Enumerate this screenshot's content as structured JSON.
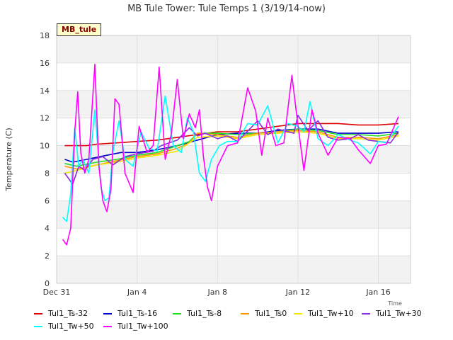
{
  "chart_data": {
    "type": "line",
    "title": "MB Tule Tower: Tule Temps 1 (3/19/14-now)",
    "xlabel": "Time",
    "ylabel": "Temperature (C)",
    "badge": "MB_tule",
    "ylim": [
      0,
      18
    ],
    "yticks": [
      0,
      2,
      4,
      6,
      8,
      10,
      12,
      14,
      16,
      18
    ],
    "xlim": [
      0,
      17.6
    ],
    "xticks": [
      {
        "label": "Dec 31",
        "x": 0
      },
      {
        "label": "Jan 4",
        "x": 4
      },
      {
        "label": "Jan 8",
        "x": 8
      },
      {
        "label": "Jan 12",
        "x": 12
      },
      {
        "label": "Jan 16",
        "x": 16
      }
    ],
    "grid": true,
    "legend_position": "bottom",
    "series": [
      {
        "name": "Tul1_Ts-32",
        "color": "#dd0000",
        "x": [
          0.4,
          1.5,
          2,
          3,
          4,
          5,
          6,
          7,
          8,
          9,
          10,
          11,
          12,
          13,
          14,
          15,
          16,
          17
        ],
        "y": [
          10.0,
          10.0,
          10.1,
          10.2,
          10.3,
          10.4,
          10.6,
          10.8,
          11.0,
          11.0,
          11.2,
          11.4,
          11.6,
          11.6,
          11.6,
          11.5,
          11.5,
          11.6
        ]
      },
      {
        "name": "Tul1_Ts-16",
        "color": "#0000cc",
        "x": [
          0.4,
          0.8,
          1.5,
          2.5,
          3.2,
          4,
          5,
          6,
          7,
          8,
          9,
          10,
          11,
          12,
          13,
          14,
          15,
          16,
          17
        ],
        "y": [
          9.0,
          8.8,
          9.0,
          9.3,
          9.5,
          9.5,
          9.7,
          10.0,
          10.4,
          10.8,
          10.9,
          10.9,
          11.1,
          11.2,
          11.2,
          10.9,
          10.9,
          10.9,
          11.0
        ]
      },
      {
        "name": "Tul1_Ts-8",
        "color": "#22dd22",
        "x": [
          0.4,
          1,
          2,
          3,
          4,
          5,
          6,
          6.6,
          7,
          8,
          9,
          10,
          11,
          12,
          13,
          14,
          15,
          16,
          17
        ],
        "y": [
          8.7,
          8.5,
          8.8,
          9.0,
          9.3,
          9.5,
          10.0,
          10.3,
          10.9,
          10.9,
          10.8,
          10.9,
          11.0,
          11.2,
          11.1,
          10.8,
          10.8,
          10.7,
          10.9
        ]
      },
      {
        "name": "Tul1_Ts0",
        "color": "#ff9900",
        "x": [
          0.4,
          1,
          2,
          3,
          4,
          5,
          6,
          6.6,
          7,
          8,
          9,
          10,
          11,
          12,
          13,
          14,
          15,
          16,
          17
        ],
        "y": [
          8.5,
          8.3,
          8.6,
          8.9,
          9.2,
          9.4,
          9.8,
          10.2,
          10.9,
          10.8,
          10.6,
          10.9,
          11.0,
          11.1,
          11.0,
          10.6,
          10.6,
          10.5,
          10.8
        ]
      },
      {
        "name": "Tul1_Tw+10",
        "color": "#f2e600",
        "x": [
          0.4,
          1,
          2,
          3,
          4,
          5,
          6,
          7,
          8,
          9,
          10,
          11,
          12,
          13,
          14,
          15,
          16,
          17
        ],
        "y": [
          8.0,
          8.2,
          8.6,
          8.8,
          9.1,
          9.3,
          9.6,
          10.6,
          10.7,
          10.5,
          10.8,
          10.9,
          11.0,
          10.9,
          10.5,
          10.5,
          10.4,
          10.7
        ]
      },
      {
        "name": "Tul1_Tw+30",
        "color": "#8a2be2",
        "x": [
          0.4,
          0.8,
          1.1,
          1.4,
          1.8,
          2.3,
          2.8,
          3.4,
          4,
          4.8,
          5.2,
          6,
          6.6,
          7,
          7.4,
          8,
          8.5,
          9,
          10,
          10.5,
          11,
          11.8,
          12,
          12.5,
          13,
          13.5,
          14,
          14.6,
          15,
          15.5,
          16,
          16.6,
          17
        ],
        "y": [
          8.0,
          7.2,
          8.5,
          8.2,
          9.0,
          9.2,
          8.6,
          9.2,
          9.4,
          9.6,
          10.0,
          10.4,
          11.3,
          10.7,
          10.9,
          10.5,
          10.7,
          10.3,
          11.8,
          10.8,
          11.2,
          10.9,
          12.2,
          11.1,
          11.8,
          10.6,
          10.4,
          10.5,
          10.8,
          10.4,
          10.3,
          10.2,
          11.0
        ]
      },
      {
        "name": "Tul1_Tw+50",
        "color": "#00ffff",
        "x": [
          0.3,
          0.5,
          0.7,
          0.9,
          1.1,
          1.3,
          1.6,
          1.9,
          2.2,
          2.4,
          2.6,
          2.8,
          3.1,
          3.4,
          3.8,
          4.2,
          4.6,
          5,
          5.4,
          5.8,
          6.2,
          6.5,
          6.8,
          7.1,
          7.4,
          7.7,
          8.1,
          8.5,
          9,
          9.5,
          10,
          10.5,
          11,
          11.5,
          12,
          12.3,
          12.6,
          13,
          13.5,
          14,
          14.6,
          15,
          15.6,
          16,
          16.4,
          17
        ],
        "y": [
          4.8,
          4.5,
          6.5,
          11.3,
          8.5,
          9.0,
          8.0,
          12.6,
          7.0,
          6.0,
          6.2,
          9.5,
          11.8,
          9.0,
          8.5,
          11.0,
          9.8,
          9.6,
          13.6,
          10.0,
          9.5,
          12.0,
          11.0,
          8.0,
          7.4,
          9.0,
          10.0,
          10.3,
          10.3,
          11.6,
          11.5,
          12.9,
          10.2,
          11.6,
          11.4,
          11.0,
          13.2,
          10.5,
          10.0,
          10.8,
          10.4,
          10.2,
          9.4,
          10.3,
          10.2,
          11.4
        ]
      },
      {
        "name": "Tul1_Tw+100",
        "color": "#ff00ff",
        "x": [
          0.3,
          0.5,
          0.7,
          0.9,
          1.05,
          1.2,
          1.4,
          1.6,
          1.9,
          2.1,
          2.3,
          2.5,
          2.7,
          2.9,
          3.1,
          3.4,
          3.8,
          4.1,
          4.5,
          4.8,
          5.1,
          5.4,
          5.7,
          6.0,
          6.3,
          6.6,
          6.9,
          7.1,
          7.3,
          7.5,
          7.7,
          8.0,
          8.5,
          9.0,
          9.5,
          9.9,
          10.2,
          10.5,
          10.9,
          11.3,
          11.7,
          12.0,
          12.3,
          12.7,
          13.0,
          13.5,
          14.0,
          14.6,
          15.0,
          15.6,
          16.0,
          16.4,
          17
        ],
        "y": [
          3.2,
          2.8,
          4.0,
          11.0,
          13.9,
          9.5,
          8.0,
          9.0,
          15.9,
          8.5,
          6.0,
          5.2,
          6.8,
          13.4,
          13.0,
          8.0,
          6.6,
          11.4,
          9.5,
          10.0,
          15.7,
          9.0,
          10.8,
          14.8,
          10.5,
          12.3,
          11.3,
          12.6,
          9.2,
          7.0,
          6.0,
          8.5,
          10.0,
          10.2,
          14.2,
          12.5,
          9.3,
          12.0,
          10.0,
          10.2,
          15.1,
          11.5,
          8.2,
          12.6,
          10.9,
          9.3,
          10.6,
          10.5,
          9.7,
          8.7,
          10.0,
          10.1,
          12.1
        ]
      }
    ]
  }
}
